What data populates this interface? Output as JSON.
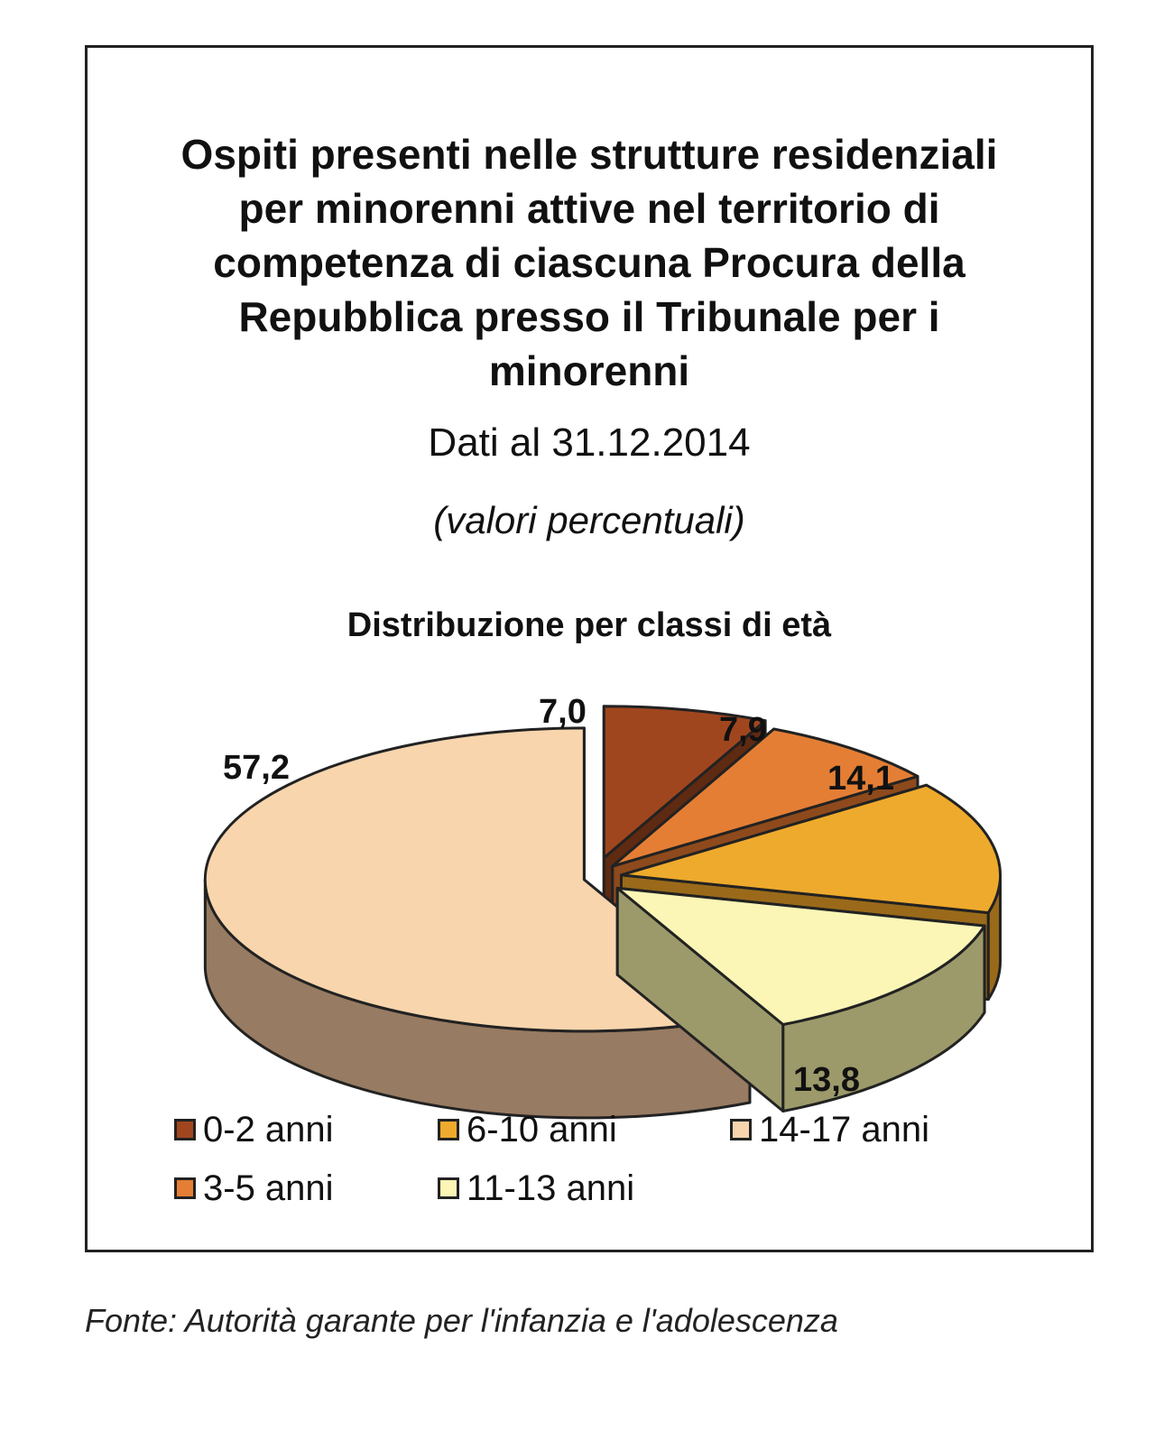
{
  "header": {
    "title": "Ospiti presenti nelle strutture residenziali per minorenni attive nel territorio di competenza di ciascuna Procura della Repubblica presso il Tribunale per i minorenni",
    "date_line": "Dati al 31.12.2014",
    "unit_line": "(valori percentuali)"
  },
  "chart_data": {
    "type": "pie",
    "title": "Distribuzione per classi di età",
    "slices": [
      {
        "label": "0-2 anni",
        "value": 7.0,
        "display": "7,0",
        "color": "#a0461e",
        "side": "#5e2a12"
      },
      {
        "label": "3-5 anni",
        "value": 7.9,
        "display": "7,9",
        "color": "#e47e34",
        "side": "#8e4a1c"
      },
      {
        "label": "6-10 anni",
        "value": 14.1,
        "display": "14,1",
        "color": "#eeaa2c",
        "side": "#9a6a1a"
      },
      {
        "label": "11-13 anni",
        "value": 13.8,
        "display": "13,8",
        "color": "#fbf6b6",
        "side": "#9c9a6a"
      },
      {
        "label": "14-17 anni",
        "value": 57.2,
        "display": "57,2",
        "color": "#f8d5ad",
        "side": "#977b62"
      }
    ],
    "legend_position": "bottom",
    "exploded": true,
    "style": "3d"
  },
  "legend": [
    {
      "label": "0-2 anni",
      "color": "#a0461e"
    },
    {
      "label": "6-10 anni",
      "color": "#eeaa2c"
    },
    {
      "label": "14-17 anni",
      "color": "#f8d5ad"
    },
    {
      "label": "3-5 anni",
      "color": "#e47e34"
    },
    {
      "label": "11-13 anni",
      "color": "#fbf6b6"
    }
  ],
  "source": "Fonte: Autorità garante per l'infanzia e l'adolescenza"
}
